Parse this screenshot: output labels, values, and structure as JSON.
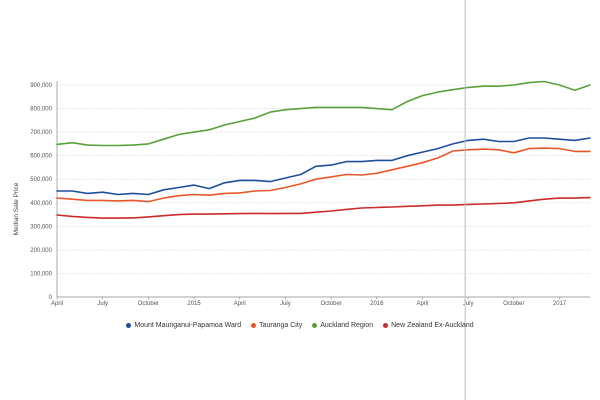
{
  "chart_data": {
    "type": "line",
    "title": "",
    "ylabel": "Median Sale Price",
    "xlabel": "",
    "ylim": [
      0,
      900000
    ],
    "yticks": [
      0,
      100000,
      200000,
      300000,
      400000,
      500000,
      600000,
      700000,
      800000,
      900000
    ],
    "ytick_labels": [
      "0",
      "100,000",
      "200,000",
      "300,000",
      "400,000",
      "500,000",
      "600,000",
      "700,000",
      "800,000",
      "900,000"
    ],
    "x": [
      "2014-04",
      "2014-05",
      "2014-06",
      "2014-07",
      "2014-08",
      "2014-09",
      "2014-10",
      "2014-11",
      "2014-12",
      "2015-01",
      "2015-02",
      "2015-03",
      "2015-04",
      "2015-05",
      "2015-06",
      "2015-07",
      "2015-08",
      "2015-09",
      "2015-10",
      "2015-11",
      "2015-12",
      "2016-01",
      "2016-02",
      "2016-03",
      "2016-04",
      "2016-05",
      "2016-06",
      "2016-07",
      "2016-08",
      "2016-09",
      "2016-10",
      "2016-11",
      "2016-12",
      "2017-01",
      "2017-02",
      "2017-03"
    ],
    "xtick_labels": [
      {
        "x": "2014-04",
        "label": "April"
      },
      {
        "x": "2014-07",
        "label": "July"
      },
      {
        "x": "2014-10",
        "label": "October"
      },
      {
        "x": "2015-01",
        "label": "2015"
      },
      {
        "x": "2015-04",
        "label": "April"
      },
      {
        "x": "2015-07",
        "label": "July"
      },
      {
        "x": "2015-10",
        "label": "October"
      },
      {
        "x": "2016-01",
        "label": "2016"
      },
      {
        "x": "2016-04",
        "label": "April"
      },
      {
        "x": "2016-07",
        "label": "July"
      },
      {
        "x": "2016-10",
        "label": "October"
      },
      {
        "x": "2017-01",
        "label": "2017"
      }
    ],
    "grid": true,
    "legend_position": "bottom",
    "series": [
      {
        "name": "Mount Maunganui-Papamoa Ward",
        "color": "#1f4e9c",
        "values": [
          450000,
          450000,
          440000,
          445000,
          435000,
          440000,
          435000,
          455000,
          465000,
          475000,
          460000,
          485000,
          495000,
          495000,
          490000,
          505000,
          520000,
          555000,
          560000,
          575000,
          575000,
          580000,
          580000,
          600000,
          615000,
          630000,
          650000,
          665000,
          670000,
          660000,
          660000,
          675000,
          675000,
          670000,
          665000,
          675000
        ]
      },
      {
        "name": "Tauranga City",
        "color": "#e8572a",
        "values": [
          420000,
          415000,
          410000,
          410000,
          408000,
          410000,
          405000,
          420000,
          430000,
          435000,
          432000,
          440000,
          442000,
          450000,
          452000,
          465000,
          480000,
          500000,
          510000,
          520000,
          518000,
          525000,
          540000,
          555000,
          570000,
          590000,
          620000,
          625000,
          628000,
          625000,
          612000,
          630000,
          632000,
          630000,
          618000,
          618000
        ]
      },
      {
        "name": "Auckland Region",
        "color": "#5aa13a",
        "values": [
          648000,
          655000,
          645000,
          643000,
          643000,
          645000,
          650000,
          670000,
          690000,
          700000,
          710000,
          730000,
          745000,
          760000,
          785000,
          795000,
          800000,
          805000,
          805000,
          805000,
          805000,
          800000,
          795000,
          830000,
          855000,
          870000,
          880000,
          890000,
          895000,
          895000,
          900000,
          910000,
          915000,
          900000,
          878000,
          900000
        ]
      },
      {
        "name": "New Zealand Ex-Auckland",
        "color": "#cc2b2b",
        "values": [
          348000,
          342000,
          338000,
          335000,
          335000,
          336000,
          340000,
          345000,
          350000,
          352000,
          352000,
          353000,
          354000,
          355000,
          354000,
          355000,
          355000,
          360000,
          365000,
          372000,
          378000,
          380000,
          382000,
          385000,
          387000,
          390000,
          390000,
          393000,
          395000,
          397000,
          400000,
          408000,
          415000,
          420000,
          420000,
          422000
        ]
      }
    ]
  }
}
